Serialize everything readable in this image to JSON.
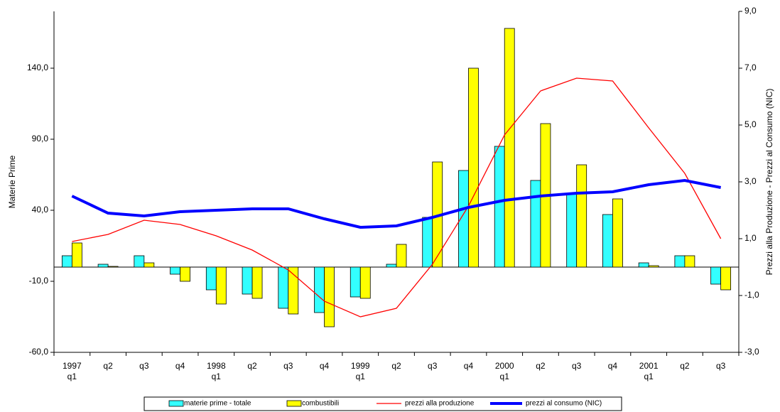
{
  "chart_data": {
    "type": "bar-line",
    "ylabel": "Materie Prime",
    "y2label": "Prezzi alla Produzione - Prezzi al Consumo (NIC)",
    "categories": [
      "1997\nq1",
      "q2",
      "q3",
      "q4",
      "1998\nq1",
      "q2",
      "q3",
      "q4",
      "1999\nq1",
      "q2",
      "q3",
      "q4",
      "2000\nq1",
      "q2",
      "q3",
      "q4",
      "2001\nq1",
      "q2",
      "q3"
    ],
    "ylim": [
      -60,
      180
    ],
    "yticks": [
      {
        "value": -60,
        "label": "-60,0"
      },
      {
        "value": -10,
        "label": "-10,0"
      },
      {
        "value": 40,
        "label": "40,0"
      },
      {
        "value": 90,
        "label": "90,0"
      },
      {
        "value": 140,
        "label": "140,0"
      }
    ],
    "y2lim": [
      -3,
      9
    ],
    "y2ticks": [
      {
        "value": -3,
        "label": "-3,0"
      },
      {
        "value": -1,
        "label": "-1,0"
      },
      {
        "value": 1,
        "label": "1,0"
      },
      {
        "value": 3,
        "label": "3,0"
      },
      {
        "value": 5,
        "label": "5,0"
      },
      {
        "value": 7,
        "label": "7,0"
      },
      {
        "value": 9,
        "label": "9,0"
      }
    ],
    "series": [
      {
        "name": "materie prime - totale",
        "type": "bar",
        "color": "#33ffff",
        "values": [
          8,
          2,
          8,
          -5,
          -16,
          -19,
          -29,
          -32,
          -21,
          2,
          35,
          68,
          85,
          61,
          52,
          37,
          3,
          8,
          -12
        ]
      },
      {
        "name": "combustibili",
        "type": "bar",
        "color": "#ffff00",
        "values": [
          17,
          0.5,
          3,
          -10,
          -26,
          -22,
          -33,
          -42,
          -22,
          16,
          74,
          140,
          168,
          101,
          72,
          48,
          1,
          8,
          -16
        ]
      },
      {
        "name": "prezzi alla produzione",
        "type": "line",
        "axis": "y2",
        "color": "#ff0000",
        "values": [
          0.9,
          1.15,
          1.65,
          1.5,
          1.1,
          0.6,
          -0.1,
          -1.2,
          -1.75,
          -1.45,
          0.1,
          2.15,
          4.65,
          6.2,
          6.65,
          6.55,
          4.9,
          3.3,
          1.0
        ]
      },
      {
        "name": "prezzi al consumo (NIC)",
        "type": "line",
        "axis": "y2",
        "color": "#0000ff",
        "values": [
          2.5,
          1.9,
          1.8,
          1.95,
          2.0,
          2.05,
          2.05,
          1.7,
          1.4,
          1.45,
          1.75,
          2.1,
          2.35,
          2.5,
          2.6,
          2.65,
          2.9,
          3.05,
          2.8
        ]
      }
    ]
  }
}
